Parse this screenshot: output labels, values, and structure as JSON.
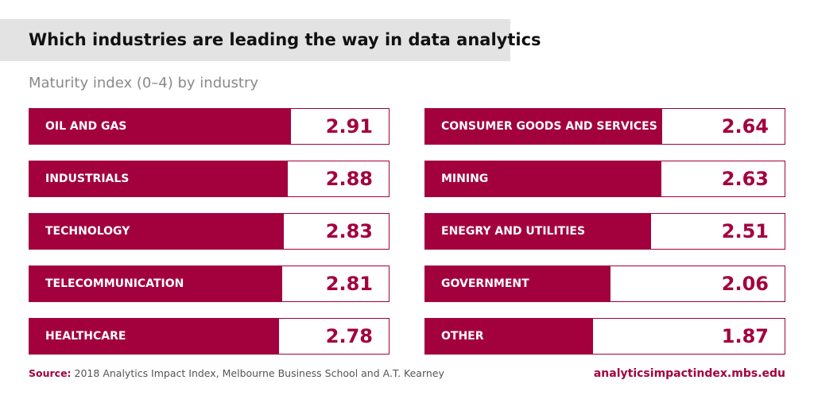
{
  "header": {
    "title": "Which industries are leading the way in data analytics",
    "subtitle": "Maturity index (0–4) by industry"
  },
  "footer": {
    "source_label": "Source:",
    "source_text": "2018 Analytics Impact Index, Melbourne Business School and A.T. Kearney",
    "website": "analyticsimpactindex.mbs.edu"
  },
  "colors": {
    "bar": "#a3003e",
    "title_band": "#e3e3e3"
  },
  "chart_data": {
    "type": "bar",
    "orientation": "horizontal",
    "title": "Which industries are leading the way in data analytics",
    "subtitle": "Maturity index (0–4) by industry",
    "xlim": [
      0,
      4
    ],
    "categories": [
      "OIL AND GAS",
      "INDUSTRIALS",
      "TECHNOLOGY",
      "TELECOMMUNICATION",
      "HEALTHCARE",
      "CONSUMER GOODS AND SERVICES",
      "MINING",
      "ENEGRY AND UTILITIES",
      "GOVERNMENT",
      "OTHER"
    ],
    "values": [
      2.91,
      2.88,
      2.83,
      2.81,
      2.78,
      2.64,
      2.63,
      2.51,
      2.06,
      1.87
    ],
    "value_labels": [
      "2.91",
      "2.88",
      "2.83",
      "2.81",
      "2.78",
      "2.64",
      "2.63",
      "2.51",
      "2.06",
      "1.87"
    ],
    "columns": [
      [
        0,
        1,
        2,
        3,
        4
      ],
      [
        5,
        6,
        7,
        8,
        9
      ]
    ]
  }
}
